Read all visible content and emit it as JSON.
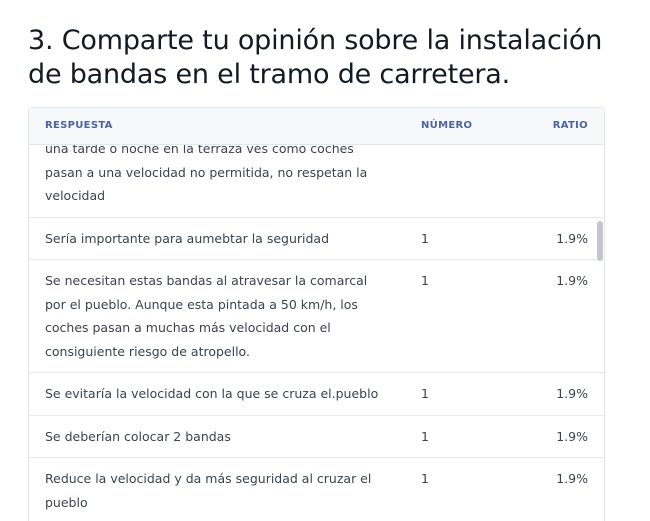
{
  "question": {
    "title": "3. Comparte tu opinión sobre la instalación de bandas en el tramo de carretera."
  },
  "table": {
    "headers": {
      "respuesta": "RESPUESTA",
      "numero": "NÚMERO",
      "ratio": "RATIO"
    },
    "rows": [
      {
        "respuesta": "una tarde o noche en la terraza ves como coches pasan a una velocidad no permitida, no respetan la velocidad",
        "numero": "",
        "ratio": ""
      },
      {
        "respuesta": "Sería importante para aumebtar la seguridad",
        "numero": "1",
        "ratio": "1.9%"
      },
      {
        "respuesta": "Se necesitan estas bandas al atravesar la comarcal por el pueblo. Aunque esta pintada a 50 km/h, los coches pasan a muchas más velocidad con el consiguiente riesgo de atropello.",
        "numero": "1",
        "ratio": "1.9%"
      },
      {
        "respuesta": "Se evitaría la velocidad con la que se cruza el.pueblo",
        "numero": "1",
        "ratio": "1.9%"
      },
      {
        "respuesta": "Se deberían colocar 2 bandas",
        "numero": "1",
        "ratio": "1.9%"
      },
      {
        "respuesta": "Reduce la velocidad y da más seguridad al cruzar el pueblo",
        "numero": "1",
        "ratio": "1.9%"
      }
    ]
  }
}
